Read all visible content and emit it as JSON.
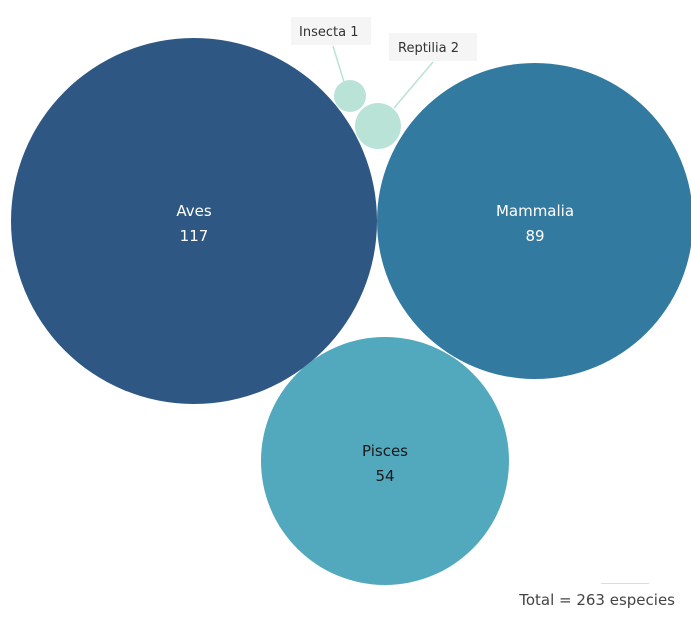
{
  "chart_data": {
    "type": "bubble",
    "title": "",
    "items": [
      {
        "name": "Aves",
        "value": 117,
        "color": "#2e5783",
        "label_color": "#ffffff"
      },
      {
        "name": "Mammalia",
        "value": 89,
        "color": "#337aa0",
        "label_color": "#ffffff"
      },
      {
        "name": "Pisces",
        "value": 54,
        "color": "#52a8bc",
        "label_color": "#1a1a1a"
      },
      {
        "name": "Reptilia",
        "value": 2,
        "color": "#b9e3d6",
        "label_color": "#333333"
      },
      {
        "name": "Insecta",
        "value": 1,
        "color": "#b9e3d6",
        "label_color": "#333333"
      }
    ],
    "total_value": 263,
    "total_text": "Total = 263  especies",
    "callouts": [
      {
        "item": "Insecta",
        "text": "Insecta 1"
      },
      {
        "item": "Reptilia",
        "text": "Reptilia 2"
      }
    ]
  }
}
